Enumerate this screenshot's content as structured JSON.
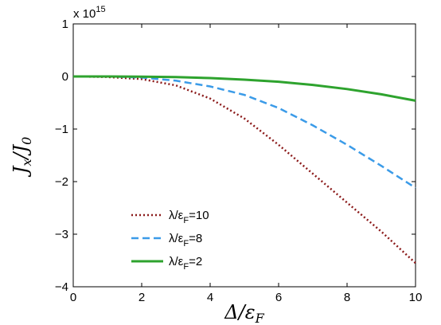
{
  "chart_data": {
    "type": "line",
    "xlabel": "Δ/ε_F",
    "ylabel": "J_x/J_0",
    "y_multiplier_label": "x 10",
    "y_multiplier_exp": "15",
    "xlim": [
      0,
      10
    ],
    "ylim": [
      -4,
      1
    ],
    "x_ticks": [
      0,
      2,
      4,
      6,
      8,
      10
    ],
    "y_ticks": [
      1,
      0,
      -1,
      -2,
      -3,
      -4
    ],
    "x_tick_labels": [
      "0",
      "2",
      "4",
      "6",
      "8",
      "10"
    ],
    "y_tick_labels": [
      "1",
      "0",
      "−1",
      "−2",
      "−3",
      "−4"
    ],
    "grid": false,
    "legend_position": "bottom-left",
    "x": [
      0,
      1,
      2,
      3,
      4,
      5,
      6,
      7,
      8,
      9,
      10
    ],
    "series": [
      {
        "name": "λ/ε_F=10",
        "legend_main": "λ/ε",
        "legend_sub": "F",
        "legend_tail": "=10",
        "color": "#8b1a1a",
        "style": "dotted",
        "values": [
          0,
          -0.01,
          -0.05,
          -0.17,
          -0.42,
          -0.8,
          -1.3,
          -1.85,
          -2.4,
          -2.95,
          -3.55
        ]
      },
      {
        "name": "λ/ε_F=8",
        "legend_main": "λ/ε",
        "legend_sub": "F",
        "legend_tail": "=8",
        "color": "#3b9be8",
        "style": "dashed",
        "values": [
          0,
          0,
          -0.02,
          -0.08,
          -0.19,
          -0.35,
          -0.6,
          -0.93,
          -1.3,
          -1.7,
          -2.12
        ]
      },
      {
        "name": "λ/ε_F=2",
        "legend_main": "λ/ε",
        "legend_sub": "F",
        "legend_tail": "=2",
        "color": "#2ea32e",
        "style": "solid",
        "values": [
          0,
          0,
          -0.005,
          -0.01,
          -0.03,
          -0.06,
          -0.1,
          -0.16,
          -0.24,
          -0.34,
          -0.46
        ]
      }
    ]
  }
}
